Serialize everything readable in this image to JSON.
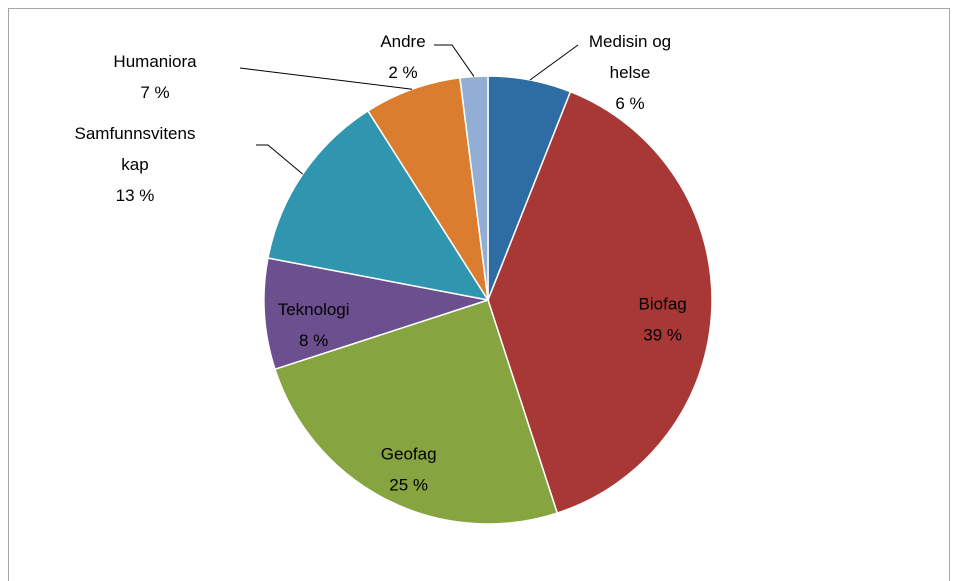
{
  "chart_data": {
    "type": "pie",
    "categories": [
      "Medisin og helse",
      "Biofag",
      "Geofag",
      "Teknologi",
      "Samfunnsvitenskap",
      "Humaniora",
      "Andre"
    ],
    "values": [
      6,
      39,
      25,
      8,
      13,
      7,
      2
    ],
    "value_labels": [
      "6 %",
      "39 %",
      "25 %",
      "8 %",
      "13 %",
      "7 %",
      "2 %"
    ],
    "colors": [
      "#2e6ca4",
      "#a83836",
      "#86a440",
      "#6c4f8f",
      "#3095ae",
      "#da7d2f",
      "#93aed4"
    ]
  }
}
